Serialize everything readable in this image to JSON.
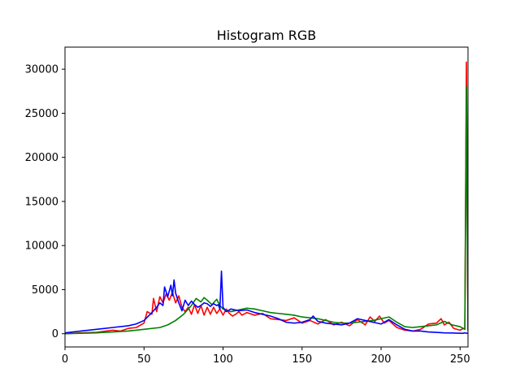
{
  "chart_data": {
    "type": "line",
    "title": "Histogram RGB",
    "xlabel": "",
    "ylabel": "",
    "xlim": [
      0,
      255
    ],
    "ylim": [
      -1500,
      32500
    ],
    "xticks": [
      0,
      50,
      100,
      150,
      200,
      250
    ],
    "yticks": [
      0,
      5000,
      10000,
      15000,
      20000,
      25000,
      30000
    ],
    "grid": false,
    "series": [
      {
        "color": "#ff0000",
        "x": [
          0,
          10,
          20,
          30,
          35,
          40,
          45,
          50,
          52,
          55,
          56,
          58,
          60,
          62,
          64,
          66,
          68,
          70,
          72,
          74,
          76,
          78,
          80,
          82,
          84,
          86,
          88,
          90,
          92,
          94,
          96,
          98,
          100,
          102,
          104,
          106,
          108,
          110,
          112,
          115,
          120,
          125,
          130,
          135,
          140,
          145,
          150,
          155,
          160,
          165,
          170,
          175,
          180,
          185,
          190,
          193,
          196,
          199,
          202,
          205,
          210,
          215,
          220,
          225,
          230,
          235,
          238,
          240,
          243,
          246,
          250,
          252,
          253,
          254,
          255
        ],
        "values": [
          0,
          100,
          150,
          400,
          300,
          600,
          700,
          1200,
          2500,
          2200,
          4000,
          2500,
          4200,
          3500,
          4500,
          3800,
          4700,
          3500,
          4300,
          3000,
          2500,
          3000,
          2200,
          3300,
          2300,
          3200,
          2100,
          3000,
          2200,
          3000,
          2300,
          2800,
          2100,
          2800,
          2300,
          2000,
          2200,
          2500,
          2100,
          2400,
          2100,
          2300,
          1700,
          1600,
          1500,
          1800,
          1200,
          1500,
          1100,
          1600,
          1000,
          1300,
          900,
          1600,
          1000,
          1900,
          1400,
          2000,
          1200,
          1500,
          700,
          400,
          300,
          500,
          1100,
          1200,
          1700,
          1000,
          1300,
          600,
          400,
          600,
          500,
          30800,
          300
        ]
      },
      {
        "color": "#008000",
        "x": [
          0,
          10,
          20,
          30,
          40,
          50,
          60,
          65,
          70,
          75,
          80,
          83,
          86,
          88,
          90,
          93,
          96,
          98,
          100,
          105,
          110,
          115,
          120,
          125,
          130,
          135,
          140,
          145,
          150,
          155,
          160,
          165,
          170,
          175,
          180,
          185,
          190,
          195,
          200,
          205,
          210,
          215,
          220,
          225,
          230,
          235,
          240,
          245,
          250,
          253,
          254,
          255
        ],
        "values": [
          0,
          50,
          100,
          200,
          300,
          500,
          700,
          1000,
          1500,
          2200,
          3200,
          4000,
          3600,
          4100,
          3800,
          3300,
          3900,
          3200,
          2800,
          2500,
          2700,
          2900,
          2800,
          2600,
          2400,
          2300,
          2200,
          2100,
          1900,
          1800,
          1700,
          1500,
          1300,
          1200,
          1200,
          1300,
          1400,
          1500,
          1700,
          1900,
          1300,
          800,
          700,
          800,
          900,
          1000,
          1400,
          1000,
          800,
          500,
          28000,
          400
        ]
      },
      {
        "color": "#0000ff",
        "x": [
          0,
          10,
          20,
          30,
          40,
          45,
          50,
          55,
          58,
          60,
          62,
          63,
          65,
          67,
          68,
          69,
          70,
          72,
          74,
          76,
          78,
          80,
          82,
          84,
          86,
          88,
          90,
          92,
          94,
          96,
          97,
          98,
          99,
          100,
          102,
          105,
          110,
          115,
          120,
          125,
          130,
          135,
          140,
          145,
          150,
          155,
          157,
          160,
          165,
          170,
          175,
          180,
          185,
          190,
          195,
          200,
          205,
          210,
          215,
          220,
          225,
          230,
          235,
          240,
          245,
          250,
          252,
          253,
          254,
          255
        ],
        "values": [
          100,
          300,
          500,
          700,
          900,
          1100,
          1500,
          2400,
          3000,
          3500,
          3200,
          5300,
          4200,
          5500,
          4300,
          6100,
          4600,
          3500,
          2600,
          3800,
          3200,
          3700,
          3300,
          3000,
          3200,
          3500,
          3400,
          3100,
          3400,
          3200,
          3300,
          2800,
          7100,
          3000,
          2500,
          2800,
          2600,
          2700,
          2400,
          2200,
          2000,
          1700,
          1300,
          1200,
          1300,
          1600,
          2000,
          1400,
          1200,
          1100,
          1000,
          1200,
          1700,
          1500,
          1300,
          1100,
          1600,
          1000,
          500,
          300,
          300,
          200,
          150,
          100,
          80,
          50,
          50,
          100,
          60,
          50
        ]
      }
    ]
  }
}
